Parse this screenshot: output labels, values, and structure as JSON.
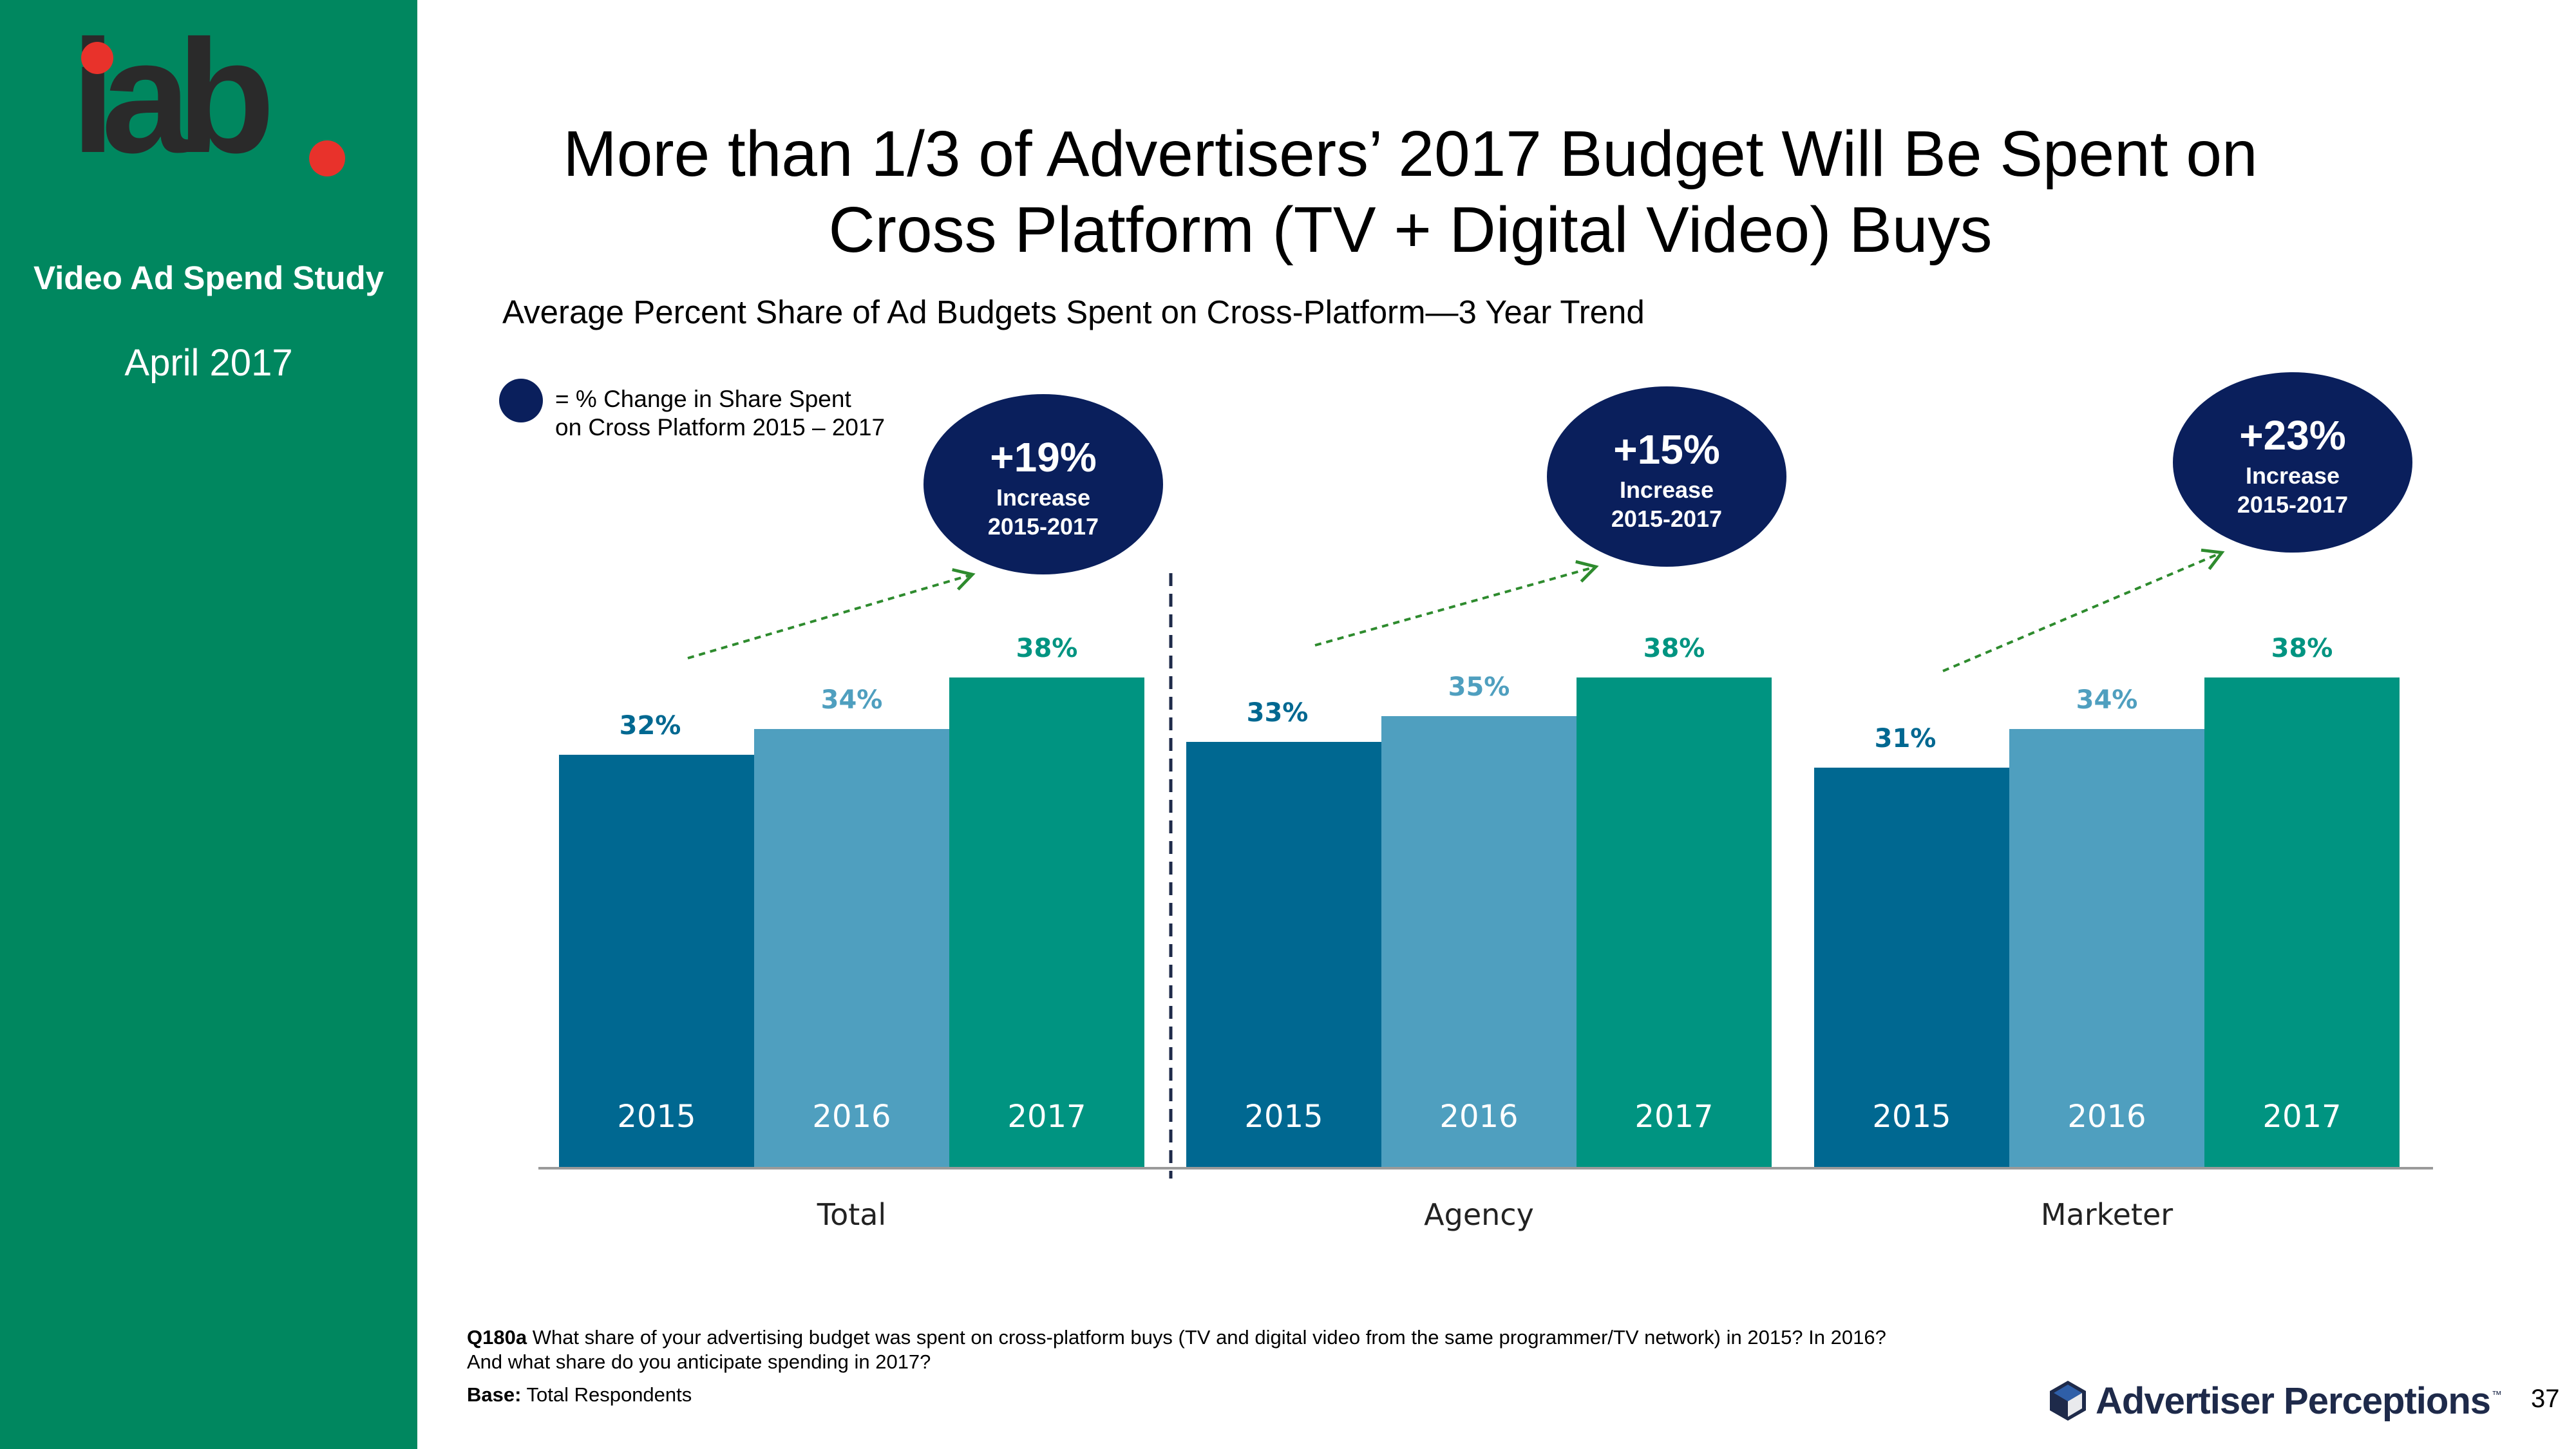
{
  "sidebar": {
    "logo_text": "iab",
    "study_name": "Video Ad Spend Study",
    "date": "April 2017"
  },
  "title_line1": "More than 1/3 of Advertisers’ 2017 Budget Will Be Spent on",
  "title_line2": "Cross Platform (TV + Digital Video) Buys",
  "legend_text_line1": "= % Change in Share Spent",
  "legend_text_line2": "on Cross Platform 2015 – 2017",
  "colors": {
    "sidebar": "#00875f",
    "y2015": "#006891",
    "y2016": "#4f9fbf",
    "y2017": "#009481",
    "bubble": "#0a1f5c",
    "arrow": "#2e8b2e",
    "logo_dot": "#e8322b"
  },
  "chart_data": {
    "type": "bar",
    "title": "Average Percent Share of Ad Budgets Spent on Cross-Platform—3 Year Trend",
    "unit": "%",
    "ylim": [
      0,
      60
    ],
    "categories": [
      "Total",
      "Agency",
      "Marketer"
    ],
    "series": [
      {
        "name": "2015",
        "values": [
          32,
          33,
          31
        ]
      },
      {
        "name": "2016",
        "values": [
          34,
          35,
          34
        ]
      },
      {
        "name": "2017",
        "values": [
          38,
          38,
          38
        ]
      }
    ],
    "data_labels": [
      [
        "32%",
        "34%",
        "38%"
      ],
      [
        "33%",
        "35%",
        "38%"
      ],
      [
        "31%",
        "34%",
        "38%"
      ]
    ],
    "annotations": [
      {
        "group": "Total",
        "change": "+19%",
        "line2": "Increase",
        "line3": "2015-2017"
      },
      {
        "group": "Agency",
        "change": "+15%",
        "line2": "Increase",
        "line3": "2015-2017"
      },
      {
        "group": "Marketer",
        "change": "+23%",
        "line2": "Increase",
        "line3": "2015-2017"
      }
    ]
  },
  "footnote": {
    "qid": "Q180a",
    "question_line1": " What share of your advertising budget was spent on cross-platform buys (TV and digital video from the same programmer/TV network) in 2015?  In 2016?",
    "question_line2": "And what share do you anticipate spending in 2017?",
    "base_label": "Base:",
    "base_value": " Total Respondents"
  },
  "brand": "Advertiser Perceptions",
  "brand_tm": "™",
  "page_number": "37"
}
